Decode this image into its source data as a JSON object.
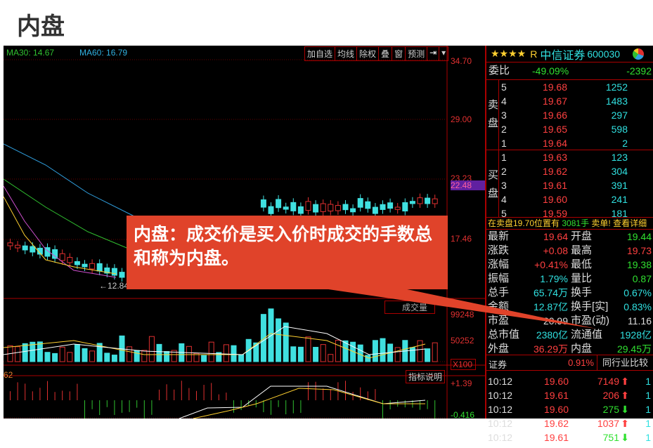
{
  "title": "内盘",
  "chart": {
    "ma30": "MA30: 14.67",
    "ma60": "MA60: 16.79",
    "toolbar": [
      "加自选",
      "均线",
      "除权",
      "叠",
      "窗",
      "预测"
    ],
    "axis": {
      "a1": "34.70",
      "a2": "29.00",
      "a3": "23.23",
      "a4": "17.46",
      "current": "22.48",
      "low_label": "←12.84",
      "vol_label": "成交量",
      "v1": "99248",
      "v2": "50252",
      "v3": "X100",
      "ind_btn": "指标说明",
      "m1": "+1.39",
      "m2": "-0.416",
      "ind_prefix": "62"
    }
  },
  "callout": {
    "text": "内盘：成交价是买入价时成交的手数总和称为内盘。"
  },
  "panel": {
    "stars": "★★★★",
    "r": "R",
    "name": "中信证券",
    "code": "600030",
    "weibi_label": "委比",
    "weibi_pct": "-49.09%",
    "weibi_diff": "-2392",
    "sell_label": "卖盘",
    "buy_label": "买盘",
    "sell": [
      {
        "n": "5",
        "p": "19.68",
        "v": "1252"
      },
      {
        "n": "4",
        "p": "19.67",
        "v": "1483"
      },
      {
        "n": "3",
        "p": "19.66",
        "v": "297"
      },
      {
        "n": "2",
        "p": "19.65",
        "v": "598"
      },
      {
        "n": "1",
        "p": "19.64",
        "v": "2"
      }
    ],
    "buy": [
      {
        "n": "1",
        "p": "19.63",
        "v": "123"
      },
      {
        "n": "2",
        "p": "19.62",
        "v": "304"
      },
      {
        "n": "3",
        "p": "19.61",
        "v": "391"
      },
      {
        "n": "4",
        "p": "19.60",
        "v": "241"
      },
      {
        "n": "5",
        "p": "19.59",
        "v": "181"
      }
    ],
    "notice": {
      "a": "在卖盘19.70位置有",
      "b": "3081手",
      "c": "卖单! 查看详细"
    },
    "stats": [
      {
        "l1": "最新",
        "v1": "19.64",
        "c1": "red",
        "l2": "开盘",
        "v2": "19.44",
        "c2": "green"
      },
      {
        "l1": "涨跌",
        "v1": "+0.08",
        "c1": "red",
        "l2": "最高",
        "v2": "19.73",
        "c2": "red"
      },
      {
        "l1": "涨幅",
        "v1": "+0.41%",
        "c1": "red",
        "l2": "最低",
        "v2": "19.38",
        "c2": "green"
      },
      {
        "l1": "振幅",
        "v1": "1.79%",
        "c1": "cyan",
        "l2": "量比",
        "v2": "0.87",
        "c2": "green"
      },
      {
        "l1": "总手",
        "v1": "65.74万",
        "c1": "cyan",
        "l2": "换手",
        "v2": "0.67%",
        "c2": "cyan"
      },
      {
        "l1": "金额",
        "v1": "12.87亿",
        "c1": "cyan",
        "l2": "换手[实]",
        "v2": "0.83%",
        "c2": "cyan"
      },
      {
        "l1": "市盈",
        "v1": "20.99",
        "c1": "white",
        "l2": "市盈(动)",
        "v2": "11.16",
        "c2": "white"
      },
      {
        "l1": "总市值",
        "v1": "2380亿",
        "c1": "cyan",
        "l2": "流通值",
        "v2": "1928亿",
        "c2": "cyan"
      },
      {
        "l1": "外盘",
        "v1": "36.29万",
        "c1": "red",
        "l2": "内盘",
        "v2": "29.45万",
        "c2": "green"
      }
    ],
    "sector": {
      "name": "证券",
      "pct": "0.91%",
      "compare": "同行业比较"
    },
    "ticks": [
      {
        "t": "10:12",
        "p": "19.60",
        "v": "7149",
        "dir": "up",
        "x": "1"
      },
      {
        "t": "10:12",
        "p": "19.61",
        "v": "206",
        "dir": "up",
        "x": "1"
      },
      {
        "t": "10:12",
        "p": "19.60",
        "v": "275",
        "dir": "down",
        "x": "1"
      },
      {
        "t": "10:12",
        "p": "19.62",
        "v": "1037",
        "dir": "up",
        "x": "1"
      },
      {
        "t": "10:12",
        "p": "19.61",
        "v": "751",
        "dir": "down",
        "x": "1"
      }
    ]
  }
}
